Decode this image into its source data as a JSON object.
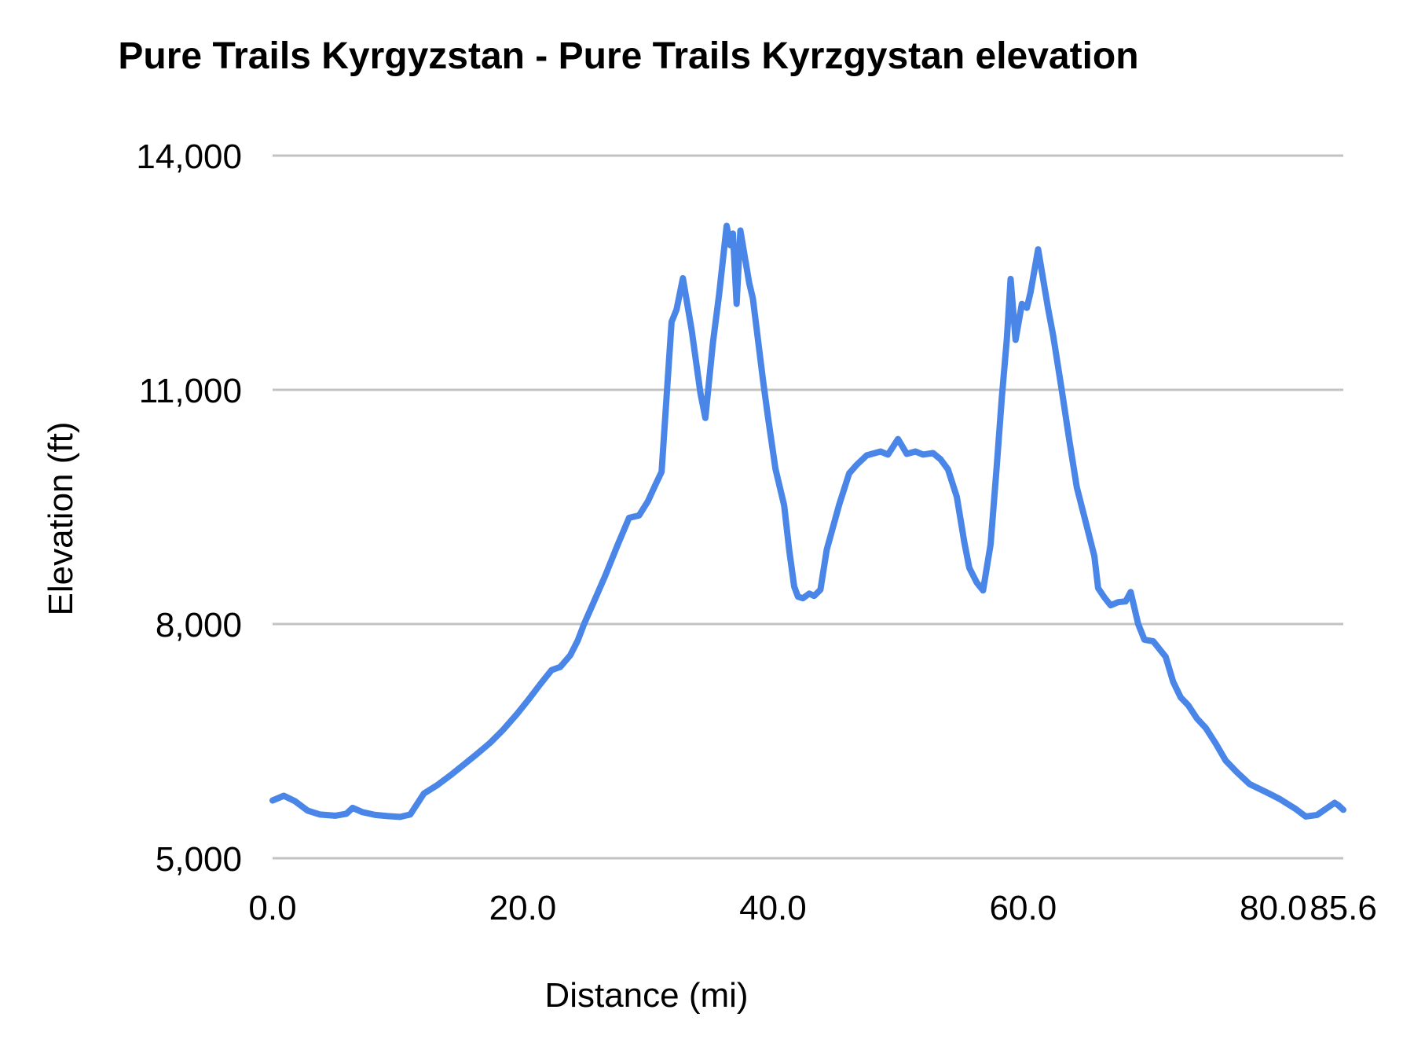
{
  "chart_data": {
    "type": "line",
    "title": "Pure Trails Kyrgyzstan - Pure Trails Kyrzgystan elevation",
    "xlabel": "Distance (mi)",
    "ylabel": "Elevation (ft)",
    "xlim": [
      0,
      85.6
    ],
    "ylim": [
      5000,
      14000
    ],
    "grid": "horizontal-only",
    "legend": "none",
    "colors": {
      "line": "#4a86e8",
      "grid": "#c2c2c2",
      "text": "#000000",
      "background": "#ffffff"
    },
    "x_ticks": [
      {
        "value": 0.0,
        "label": "0.0"
      },
      {
        "value": 20.0,
        "label": "20.0"
      },
      {
        "value": 40.0,
        "label": "40.0"
      },
      {
        "value": 60.0,
        "label": "60.0"
      },
      {
        "value": 80.0,
        "label": "80.0"
      },
      {
        "value": 85.6,
        "label": "85.6"
      }
    ],
    "y_ticks": [
      {
        "value": 5000,
        "label": "5,000"
      },
      {
        "value": 8000,
        "label": "8,000"
      },
      {
        "value": 11000,
        "label": "11,000"
      },
      {
        "value": 14000,
        "label": "14,000"
      }
    ],
    "series": [
      {
        "points": [
          [
            0.0,
            5740
          ],
          [
            0.9,
            5800
          ],
          [
            1.8,
            5730
          ],
          [
            2.8,
            5610
          ],
          [
            3.8,
            5560
          ],
          [
            5.0,
            5545
          ],
          [
            5.9,
            5570
          ],
          [
            6.4,
            5645
          ],
          [
            7.2,
            5590
          ],
          [
            8.2,
            5555
          ],
          [
            9.2,
            5540
          ],
          [
            10.2,
            5530
          ],
          [
            11.0,
            5560
          ],
          [
            12.1,
            5830
          ],
          [
            13.2,
            5940
          ],
          [
            14.2,
            6060
          ],
          [
            15.3,
            6200
          ],
          [
            16.3,
            6330
          ],
          [
            17.4,
            6480
          ],
          [
            18.4,
            6640
          ],
          [
            19.5,
            6840
          ],
          [
            20.5,
            7040
          ],
          [
            21.4,
            7230
          ],
          [
            22.3,
            7410
          ],
          [
            23.0,
            7450
          ],
          [
            23.8,
            7600
          ],
          [
            24.4,
            7790
          ],
          [
            24.9,
            8000
          ],
          [
            25.7,
            8290
          ],
          [
            26.6,
            8620
          ],
          [
            27.6,
            9020
          ],
          [
            28.5,
            9360
          ],
          [
            29.3,
            9390
          ],
          [
            30.0,
            9570
          ],
          [
            30.6,
            9780
          ],
          [
            31.1,
            9950
          ],
          [
            31.9,
            11870
          ],
          [
            32.3,
            12030
          ],
          [
            32.8,
            12430
          ],
          [
            33.5,
            11770
          ],
          [
            34.2,
            10960
          ],
          [
            34.6,
            10640
          ],
          [
            35.2,
            11600
          ],
          [
            35.7,
            12220
          ],
          [
            36.3,
            13100
          ],
          [
            36.6,
            12850
          ],
          [
            36.8,
            13000
          ],
          [
            37.1,
            12100
          ],
          [
            37.4,
            13040
          ],
          [
            38.1,
            12370
          ],
          [
            38.4,
            12170
          ],
          [
            39.2,
            11130
          ],
          [
            39.6,
            10660
          ],
          [
            40.2,
            9990
          ],
          [
            40.9,
            9520
          ],
          [
            41.3,
            8950
          ],
          [
            41.7,
            8480
          ],
          [
            42.0,
            8350
          ],
          [
            42.4,
            8330
          ],
          [
            42.9,
            8390
          ],
          [
            43.3,
            8360
          ],
          [
            43.8,
            8440
          ],
          [
            44.3,
            8950
          ],
          [
            45.3,
            9530
          ],
          [
            46.1,
            9930
          ],
          [
            46.7,
            10040
          ],
          [
            47.5,
            10160
          ],
          [
            48.6,
            10210
          ],
          [
            49.2,
            10170
          ],
          [
            50.0,
            10370
          ],
          [
            50.7,
            10180
          ],
          [
            51.4,
            10210
          ],
          [
            52.0,
            10170
          ],
          [
            52.8,
            10190
          ],
          [
            53.4,
            10110
          ],
          [
            54.0,
            9980
          ],
          [
            54.7,
            9630
          ],
          [
            55.3,
            9050
          ],
          [
            55.7,
            8720
          ],
          [
            56.3,
            8530
          ],
          [
            56.8,
            8430
          ],
          [
            57.4,
            9020
          ],
          [
            57.9,
            10030
          ],
          [
            58.3,
            10900
          ],
          [
            58.7,
            11650
          ],
          [
            59.0,
            12420
          ],
          [
            59.4,
            11640
          ],
          [
            59.9,
            12100
          ],
          [
            60.3,
            12050
          ],
          [
            60.6,
            12250
          ],
          [
            61.2,
            12800
          ],
          [
            62.0,
            12040
          ],
          [
            62.4,
            11700
          ],
          [
            63.1,
            10990
          ],
          [
            63.7,
            10350
          ],
          [
            64.3,
            9750
          ],
          [
            65.0,
            9310
          ],
          [
            65.7,
            8870
          ],
          [
            66.0,
            8460
          ],
          [
            66.5,
            8340
          ],
          [
            67.0,
            8240
          ],
          [
            67.6,
            8280
          ],
          [
            68.2,
            8290
          ],
          [
            68.6,
            8410
          ],
          [
            69.2,
            8000
          ],
          [
            69.7,
            7800
          ],
          [
            70.4,
            7780
          ],
          [
            71.4,
            7580
          ],
          [
            72.0,
            7260
          ],
          [
            72.6,
            7060
          ],
          [
            73.2,
            6960
          ],
          [
            73.9,
            6790
          ],
          [
            74.6,
            6670
          ],
          [
            75.4,
            6470
          ],
          [
            76.2,
            6250
          ],
          [
            77.1,
            6100
          ],
          [
            78.1,
            5950
          ],
          [
            79.4,
            5850
          ],
          [
            80.5,
            5760
          ],
          [
            81.8,
            5630
          ],
          [
            82.6,
            5535
          ],
          [
            83.5,
            5555
          ],
          [
            84.9,
            5710
          ],
          [
            85.2,
            5680
          ],
          [
            85.6,
            5620
          ]
        ]
      }
    ]
  }
}
